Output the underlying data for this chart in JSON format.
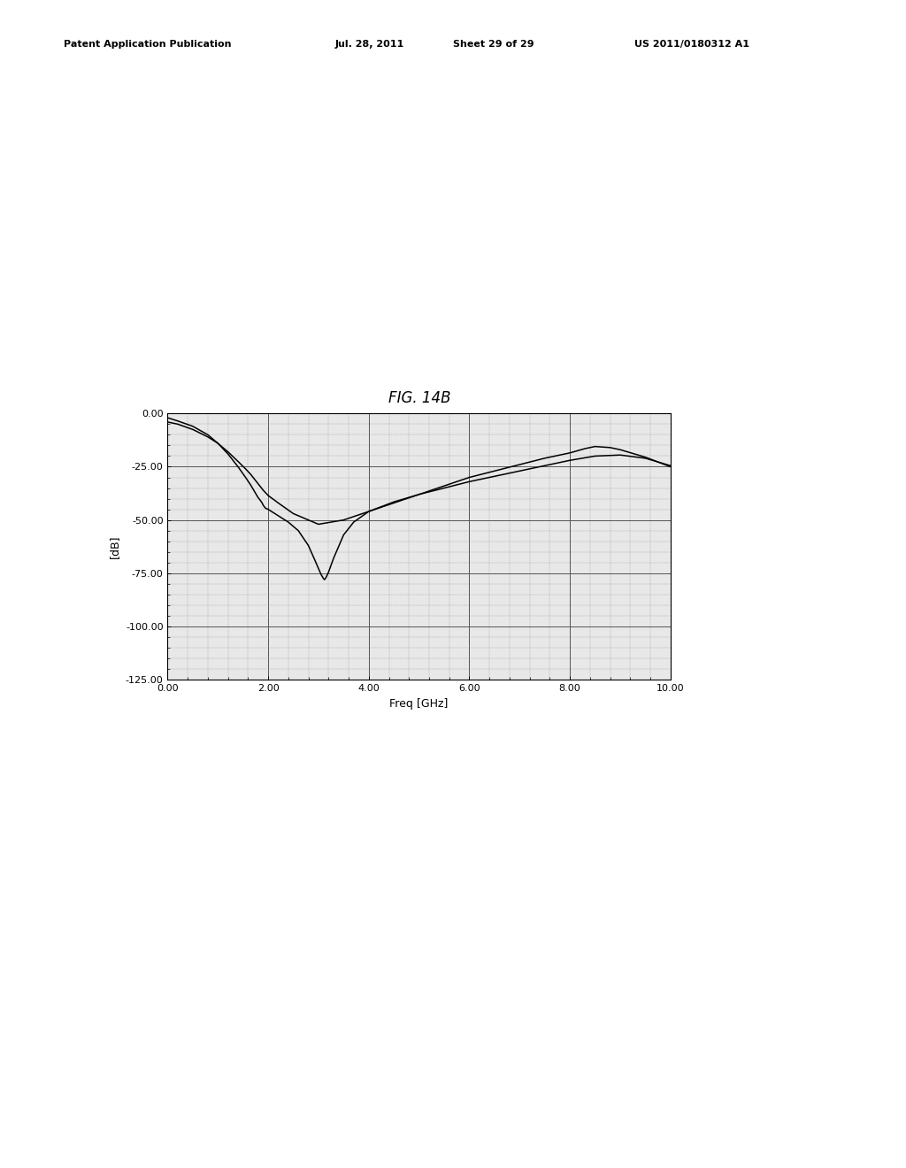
{
  "title": "FIG. 14B",
  "xlabel": "Freq [GHz]",
  "ylabel": "[dB]",
  "xlim": [
    0.0,
    10.0
  ],
  "ylim": [
    -125.0,
    0.0
  ],
  "xticks": [
    0.0,
    2.0,
    4.0,
    6.0,
    8.0,
    10.0
  ],
  "yticks": [
    0.0,
    -25.0,
    -50.0,
    -75.0,
    -100.0,
    -125.0
  ],
  "xtick_labels": [
    "0.00",
    "2.00",
    "4.00",
    "6.00",
    "8.00",
    "10.00"
  ],
  "ytick_labels": [
    "0.00",
    "-25.00",
    "-50.00",
    "-75.00",
    "-100.00",
    "-125.00"
  ],
  "background_color": "#ffffff",
  "plot_bg_color": "#e8e8e8",
  "grid_major_color": "#555555",
  "grid_minor_color": "#999999",
  "line_color": "#000000",
  "title_fontsize": 12,
  "axis_fontsize": 9,
  "tick_fontsize": 8,
  "header_fontsize": 8,
  "curve1_x": [
    0.0,
    0.2,
    0.5,
    0.8,
    1.0,
    1.2,
    1.4,
    1.55,
    1.65,
    1.7,
    1.75,
    1.8,
    1.85,
    1.88,
    1.9,
    1.93,
    1.95,
    2.0,
    2.1,
    2.2,
    2.4,
    2.6,
    2.8,
    2.95,
    3.05,
    3.1,
    3.12,
    3.15,
    3.2,
    3.3,
    3.5,
    3.7,
    4.0,
    4.5,
    5.0,
    5.5,
    6.0,
    6.5,
    7.0,
    7.5,
    8.0,
    8.5,
    9.0,
    9.5,
    10.0
  ],
  "curve1_y": [
    -2.0,
    -3.5,
    -6.0,
    -10.0,
    -14.0,
    -19.0,
    -25.0,
    -30.0,
    -33.5,
    -35.5,
    -37.5,
    -39.5,
    -41.0,
    -42.0,
    -43.0,
    -44.0,
    -44.5,
    -45.0,
    -46.5,
    -48.0,
    -51.0,
    -55.0,
    -62.0,
    -70.0,
    -75.5,
    -77.5,
    -78.0,
    -77.0,
    -74.5,
    -68.0,
    -57.0,
    -51.0,
    -46.0,
    -41.5,
    -38.0,
    -35.0,
    -32.0,
    -29.5,
    -27.0,
    -24.5,
    -22.0,
    -20.0,
    -19.5,
    -21.0,
    -24.5
  ],
  "curve2_x": [
    0.0,
    0.2,
    0.5,
    0.8,
    1.0,
    1.2,
    1.4,
    1.55,
    1.65,
    1.7,
    1.75,
    1.8,
    1.85,
    1.9,
    2.0,
    2.2,
    2.5,
    3.0,
    3.5,
    4.0,
    4.5,
    5.0,
    5.5,
    6.0,
    6.5,
    7.0,
    7.5,
    8.0,
    8.3,
    8.5,
    8.8,
    9.0,
    9.5,
    10.0
  ],
  "curve2_y": [
    -4.0,
    -5.0,
    -7.5,
    -11.0,
    -14.0,
    -18.0,
    -22.5,
    -26.0,
    -28.5,
    -30.0,
    -31.5,
    -33.0,
    -34.5,
    -36.0,
    -38.5,
    -42.0,
    -47.0,
    -52.0,
    -50.0,
    -46.0,
    -42.0,
    -38.0,
    -34.0,
    -30.0,
    -27.0,
    -24.0,
    -21.0,
    -18.5,
    -16.5,
    -15.5,
    -16.0,
    -17.0,
    -20.5,
    -25.0
  ]
}
